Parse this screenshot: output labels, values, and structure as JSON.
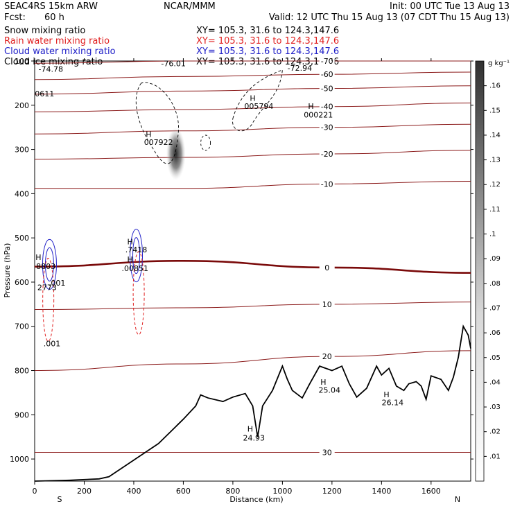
{
  "header": {
    "model": "SEAC4RS 15km ARW",
    "forecast_label": "Fcst:",
    "forecast_hours": "60 h",
    "center": "NCAR/MMM",
    "init": "Init: 00 UTC Tue 13 Aug 13",
    "valid": "Valid: 12 UTC Thu 15 Aug 13 (07 CDT Thu 15 Aug 13)",
    "fields": [
      {
        "name": "Snow mixing ratio",
        "xy": "XY= 105.3, 31.6 to 124.3,147.6",
        "color": "#000000"
      },
      {
        "name": "Rain water mixing ratio",
        "xy": "XY= 105.3, 31.6 to 124.3,147.6",
        "color": "#e02020"
      },
      {
        "name": "Cloud water mixing ratio",
        "xy": "XY= 105.3, 31.6 to 124.3,147.6",
        "color": "#2020c8"
      },
      {
        "name": "Cloud ice mixing ratio",
        "xy": "XY= 105.3, 31.6 to 124.3,147.6",
        "color": "#000000"
      }
    ]
  },
  "colors": {
    "temperature": "#8b1a1a",
    "freezing": "#7a0a0a",
    "rain": "#e02020",
    "cloud_water": "#2020c8",
    "snow": "#333333",
    "terrain": "#000000"
  },
  "chart_data": {
    "type": "cross-section",
    "xlabel": "Distance (km)",
    "ylabel": "Pressure (hPa)",
    "xlim": [
      0,
      1760
    ],
    "ylim": [
      1050,
      100
    ],
    "x_ticks": [
      0,
      200,
      400,
      600,
      800,
      1000,
      1200,
      1400,
      1600
    ],
    "y_ticks": [
      100,
      200,
      300,
      400,
      500,
      600,
      700,
      800,
      900,
      1000
    ],
    "endpoints": {
      "left": "S",
      "right": "N"
    },
    "colorbar": {
      "unit": "g kg⁻¹",
      "ticks": [
        ".01",
        ".02",
        ".03",
        ".04",
        ".05",
        ".06",
        ".07",
        ".08",
        ".09",
        ".1",
        ".11",
        ".12",
        ".13",
        ".14",
        ".15",
        ".16"
      ]
    },
    "isotherms": [
      {
        "label": "-70",
        "y": [
          105,
          100,
          100,
          100
        ]
      },
      {
        "label": "-60",
        "y": [
          142,
          135,
          130,
          125
        ]
      },
      {
        "label": "-50",
        "y": [
          175,
          168,
          162,
          156
        ]
      },
      {
        "label": "-40",
        "y": [
          215,
          210,
          203,
          195
        ]
      },
      {
        "label": "-30",
        "y": [
          265,
          258,
          250,
          243
        ]
      },
      {
        "label": "-20",
        "y": [
          322,
          318,
          310,
          302
        ]
      },
      {
        "label": "-10",
        "y": [
          388,
          388,
          378,
          372
        ]
      },
      {
        "label": "0",
        "y": [
          565,
          552,
          567,
          579
        ]
      },
      {
        "label": "10",
        "y": [
          662,
          658,
          650,
          645
        ]
      },
      {
        "label": "20",
        "y": [
          800,
          785,
          768,
          755
        ]
      },
      {
        "label": "30",
        "y": [
          985,
          985,
          985,
          985
        ]
      }
    ],
    "line_labels": [
      {
        "text": "-74.78",
        "x": 65,
        "p": 124
      },
      {
        "text": "-76.01",
        "x": 560,
        "p": 112
      },
      {
        "text": "-72.94",
        "x": 1070,
        "p": 122
      },
      {
        "text": "0611",
        "x": 40,
        "p": 180
      },
      {
        "text": "H",
        "x": 880,
        "p": 190
      },
      {
        "text": "005794",
        "x": 905,
        "p": 208
      },
      {
        "text": "H",
        "x": 1115,
        "p": 208
      },
      {
        "text": "000221",
        "x": 1145,
        "p": 228
      },
      {
        "text": "H",
        "x": 460,
        "p": 272
      },
      {
        "text": "007922",
        "x": 500,
        "p": 290
      },
      {
        "text": "H",
        "x": 385,
        "p": 515
      },
      {
        "text": ".7418",
        "x": 410,
        "p": 533
      },
      {
        "text": "H",
        "x": 15,
        "p": 550
      },
      {
        "text": "8803",
        "x": 45,
        "p": 570
      },
      {
        "text": "H",
        "x": 385,
        "p": 555
      },
      {
        "text": ".00851",
        "x": 405,
        "p": 575
      },
      {
        "text": "2773",
        "x": 50,
        "p": 618
      },
      {
        "text": ".001",
        "x": 90,
        "p": 608
      },
      {
        "text": ".001",
        "x": 70,
        "p": 745
      },
      {
        "text": "H",
        "x": 1165,
        "p": 832
      },
      {
        "text": "25.04",
        "x": 1190,
        "p": 850
      },
      {
        "text": "H",
        "x": 1420,
        "p": 860
      },
      {
        "text": "26.14",
        "x": 1445,
        "p": 878
      },
      {
        "text": "H",
        "x": 870,
        "p": 938
      },
      {
        "text": "24.93",
        "x": 885,
        "p": 958
      }
    ],
    "terrain": {
      "x": [
        0,
        140,
        260,
        300,
        380,
        500,
        600,
        650,
        670,
        700,
        760,
        800,
        850,
        880,
        900,
        920,
        960,
        1000,
        1020,
        1040,
        1080,
        1110,
        1150,
        1200,
        1240,
        1270,
        1300,
        1340,
        1380,
        1400,
        1430,
        1460,
        1490,
        1510,
        1540,
        1560,
        1580,
        1600,
        1640,
        1670,
        1690,
        1710,
        1730,
        1750,
        1760
      ],
      "p": [
        1050,
        1048,
        1045,
        1040,
        1010,
        965,
        910,
        880,
        855,
        862,
        870,
        860,
        852,
        880,
        950,
        880,
        845,
        790,
        820,
        845,
        862,
        830,
        790,
        800,
        790,
        830,
        860,
        840,
        790,
        810,
        795,
        835,
        845,
        830,
        825,
        835,
        865,
        812,
        820,
        845,
        815,
        770,
        700,
        720,
        750
      ]
    },
    "snow_max": {
      "x": 570,
      "p": 310,
      "value": ".16"
    },
    "annotations": [
      "0",
      "10",
      "20",
      "30",
      "-10",
      "-20",
      "-30",
      "-40",
      "-50",
      "-60",
      "-70",
      "20",
      "20"
    ]
  }
}
